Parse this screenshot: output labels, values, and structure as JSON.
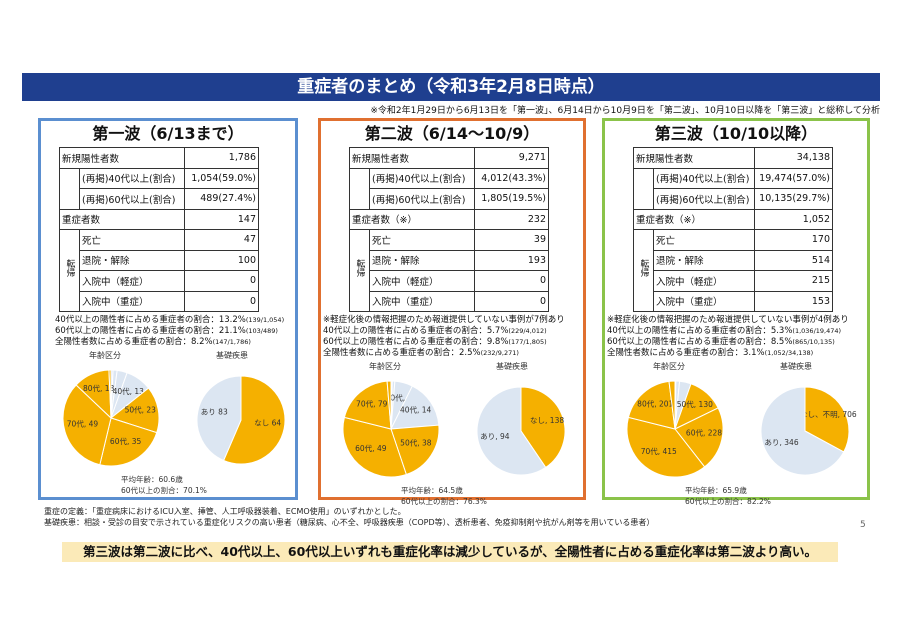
{
  "title": "重症者のまとめ（令和3年2月8日時点）",
  "note": "※令和2年1月29日から6月13日を「第一波」、6月14日から10月9日を「第二波」、10月10日以降を「第三波」と総称して分析",
  "waves": [
    {
      "title": "第一波（6/13まで）",
      "new_positive_label": "新規陽性者数",
      "new_positive": "1,786",
      "over40_label": "(再掲)40代以上(割合)",
      "over40": "1,054(59.0%)",
      "over60_label": "(再掲)60代以上(割合)",
      "over60": "489(27.4%)",
      "severe_label": "重症者数",
      "severe": "147",
      "side_label": "転帰",
      "death_label": "死亡",
      "death": "47",
      "discharge_label": "退院・解除",
      "discharge": "100",
      "mild_label": "入院中（軽症）",
      "mild": "0",
      "sev_label": "入院中（重症）",
      "sev": "0",
      "footnote": "",
      "rate40": "40代以上の陽性者に占める重症者の割合：13.2%",
      "rate40_sm": "(139/1,054)",
      "rate60": "60代以上の陽性者に占める重症者の割合：21.1%",
      "rate60_sm": "(103/489)",
      "rate_all": "全陽性者数に占める重症者の割合：8.2%",
      "rate_all_sm": "(147/1,786)",
      "age_header": "年齢区分",
      "disease_header": "基礎疾患",
      "age_labels": [
        "10代, 1",
        "20代, 2",
        "30代, 5",
        "40代, 13",
        "50代, 23",
        "60代, 35",
        "70代, 49",
        "80代, 18",
        "90代, 1"
      ],
      "disease_labels": [
        "なし 64",
        "あり 83"
      ],
      "avg": "平均年齢：60.6歳",
      "over60_rate": "60代以上の割合：70.1%"
    },
    {
      "title": "第二波（6/14〜10/9）",
      "new_positive_label": "新規陽性者数",
      "new_positive": "9,271",
      "over40_label": "(再掲)40代以上(割合)",
      "over40": "4,012(43.3%)",
      "over60_label": "(再掲)60代以上(割合)",
      "over60": "1,805(19.5%)",
      "severe_label": "重症者数（※）",
      "severe": "232",
      "side_label": "転帰",
      "death_label": "死亡",
      "death": "39",
      "discharge_label": "退院・解除",
      "discharge": "193",
      "mild_label": "入院中（軽症）",
      "mild": "0",
      "sev_label": "入院中（重症）",
      "sev": "0",
      "footnote": "※軽症化後の情報把握のため報道提供していない事例が7例あり",
      "rate40": "40代以上の陽性者に占める重症者の割合：5.7%",
      "rate40_sm": "(229/4,012)",
      "rate60": "60代以上の陽性者に占める重症者の割合：9.8%",
      "rate60_sm": "(177/1,805)",
      "rate_all": "全陽性者数に占める重症者の割合：2.5%",
      "rate_all_sm": "(232/9,271)",
      "age_header": "年齢区分",
      "disease_header": "基礎疾患",
      "age_labels": [
        "20代, 1",
        "30代, 2",
        "90代, 3",
        "40代, 14",
        "50代, 38",
        "60代, 49",
        "70代, 79",
        "80代, 46"
      ],
      "disease_labels": [
        "なし, 138",
        "あり, 94"
      ],
      "avg": "平均年齢：64.5歳",
      "over60_rate": "60代以上の割合：76.3%"
    },
    {
      "title": "第三波（10/10以降）",
      "new_positive_label": "新規陽性者数",
      "new_positive": "34,138",
      "over40_label": "(再掲)40代以上(割合)",
      "over40": "19,474(57.0%)",
      "over60_label": "(再掲)60代以上(割合)",
      "over60": "10,135(29.7%)",
      "severe_label": "重症者数（※）",
      "severe": "1,052",
      "side_label": "転帰",
      "death_label": "死亡",
      "death": "170",
      "discharge_label": "退院・解除",
      "discharge": "514",
      "mild_label": "入院中（軽症）",
      "mild": "215",
      "sev_label": "入院中（重症）",
      "sev": "153",
      "footnote": "※軽症化後の情報把握のため報道提供していない事例が4例あり",
      "rate40": "40代以上の陽性者に占める重症者の割合：5.3%",
      "rate40_sm": "(1,036/19,474)",
      "rate60": "60代以上の陽性者に占める重症者の割合：8.5%",
      "rate60_sm": "(865/10,135)",
      "rate_all": "全陽性者数に占める重症者の割合：3.1%",
      "rate_all_sm": "(1,052/34,138)",
      "age_header": "年齢区分",
      "disease_header": "基礎疾患",
      "age_labels": [
        "未就学児, 1",
        "20代, 2",
        "30代, 13",
        "40代, 41",
        "50代, 130",
        "60代, 228",
        "70代, 415",
        "80代, 201",
        "90代, 21"
      ],
      "disease_labels": [
        "なし、不明, 706",
        "あり, 346"
      ],
      "avg": "平均年齢：65.9歳",
      "over60_rate": "60代以上の割合：82.2%"
    }
  ],
  "definition_1": "重症の定義：「重症病床におけるICU入室、挿管、人工呼吸器装着、ECMO使用」のいずれかとした。",
  "definition_2": "基礎疾患：相談・受診の目安で示されている重症化リスクの高い患者（糖尿病、心不全、呼吸器疾患（COPD等）、透析患者、免疫抑制剤や抗がん剤等を用いている患者）",
  "page_number": "5",
  "summary": "第三波は第二波に比べ、40代以上、60代以上いずれも重症化率は減少しているが、全陽性者に占める重症化率は第二波より高い。",
  "chart_data": [
    {
      "type": "pie",
      "title": "年齢区分",
      "categories": [
        "10代",
        "20代",
        "30代",
        "40代",
        "50代",
        "60代",
        "70代",
        "80代",
        "90代"
      ],
      "values": [
        1,
        2,
        5,
        13,
        23,
        35,
        49,
        18,
        1
      ]
    },
    {
      "type": "pie",
      "title": "基礎疾患",
      "categories": [
        "あり",
        "なし"
      ],
      "values": [
        83,
        64
      ]
    },
    {
      "type": "pie",
      "title": "年齢区分",
      "categories": [
        "20代",
        "30代",
        "40代",
        "50代",
        "60代",
        "70代",
        "80代",
        "90代"
      ],
      "values": [
        1,
        2,
        14,
        38,
        49,
        79,
        46,
        3
      ]
    },
    {
      "type": "pie",
      "title": "基礎疾患",
      "categories": [
        "あり",
        "なし"
      ],
      "values": [
        94,
        138
      ]
    },
    {
      "type": "pie",
      "title": "年齢区分",
      "categories": [
        "未就学児",
        "20代",
        "30代",
        "40代",
        "50代",
        "60代",
        "70代",
        "80代",
        "90代"
      ],
      "values": [
        1,
        2,
        13,
        41,
        130,
        228,
        415,
        201,
        21
      ]
    },
    {
      "type": "pie",
      "title": "基礎疾患",
      "categories": [
        "あり",
        "なし、不明"
      ],
      "values": [
        346,
        706
      ]
    }
  ]
}
